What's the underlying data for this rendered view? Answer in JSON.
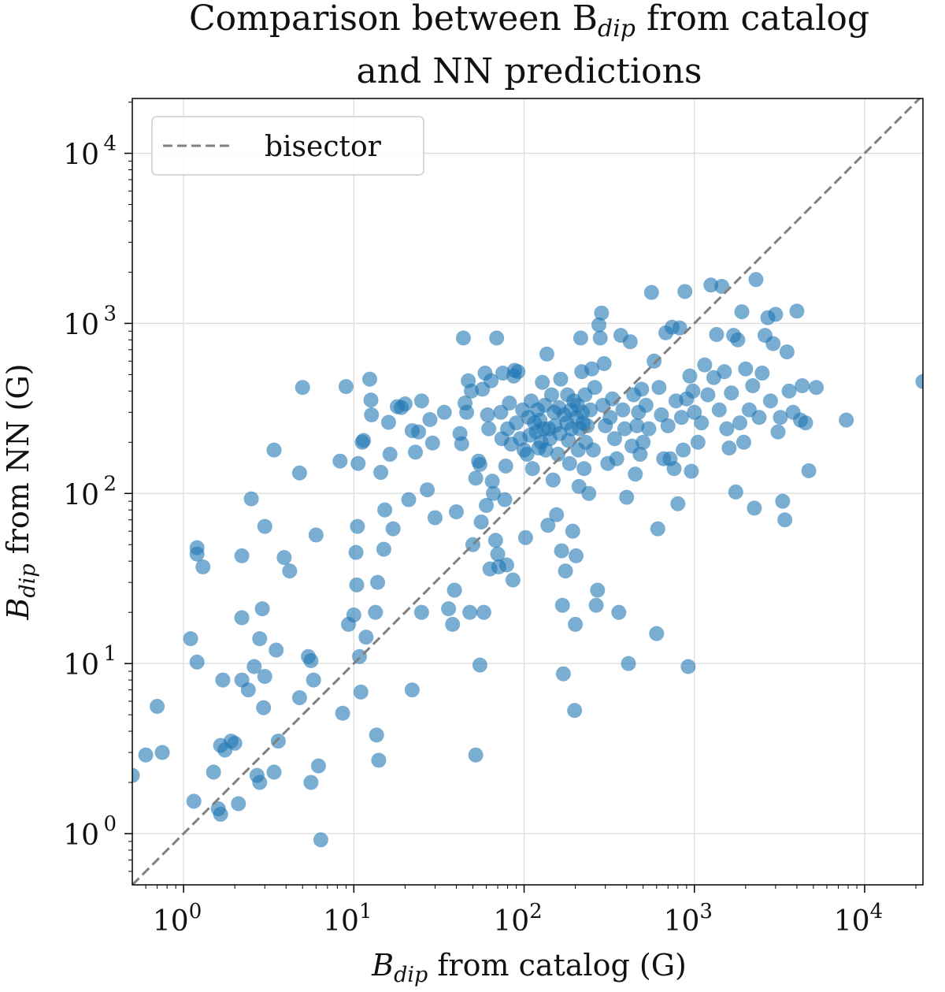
{
  "chart_data": {
    "type": "scatter",
    "title_line1": "Comparison between B",
    "title_line1_sub": "dip",
    "title_line1_tail": " from catalog",
    "title_line2": "and NN predictions",
    "xlabel_main": "B",
    "xlabel_sub": "dip",
    "xlabel_tail": " from catalog (G)",
    "ylabel_main": "B",
    "ylabel_sub": "dip",
    "ylabel_tail": " from NN (G)",
    "x_scale": "log",
    "y_scale": "log",
    "xlim": [
      0.5,
      22000
    ],
    "ylim": [
      0.5,
      21000
    ],
    "x_ticks": [
      1,
      10,
      100,
      1000,
      10000
    ],
    "y_ticks": [
      1,
      10,
      100,
      1000,
      10000
    ],
    "tick_base": "10",
    "x_tick_exponents": [
      "0",
      "1",
      "2",
      "3",
      "4"
    ],
    "y_tick_exponents": [
      "0",
      "1",
      "2",
      "3",
      "4"
    ],
    "grid": true,
    "legend_position": "top-left",
    "colors": {
      "points": "#1f77b4",
      "bisector": "#808080"
    },
    "series": [
      {
        "name": "bisector",
        "kind": "dashed-line",
        "x": [
          0.5,
          22000
        ],
        "y": [
          0.5,
          22000
        ]
      },
      {
        "kind": "scatter",
        "points": [
          [
            0.5,
            2.2
          ],
          [
            0.6,
            2.9
          ],
          [
            0.7,
            5.6
          ],
          [
            0.75,
            3.0
          ],
          [
            1.1,
            14
          ],
          [
            1.15,
            1.55
          ],
          [
            1.2,
            10.2
          ],
          [
            1.2,
            48
          ],
          [
            1.2,
            44
          ],
          [
            1.3,
            37
          ],
          [
            1.5,
            2.3
          ],
          [
            1.6,
            1.4
          ],
          [
            1.65,
            1.3
          ],
          [
            1.65,
            3.3
          ],
          [
            1.7,
            8.0
          ],
          [
            1.75,
            3.1
          ],
          [
            1.9,
            3.5
          ],
          [
            2.0,
            3.4
          ],
          [
            2.1,
            1.5
          ],
          [
            2.2,
            8.0
          ],
          [
            2.2,
            18.6
          ],
          [
            2.2,
            43
          ],
          [
            2.4,
            7.0
          ],
          [
            2.5,
            93
          ],
          [
            2.6,
            9.6
          ],
          [
            2.7,
            2.2
          ],
          [
            2.8,
            2.0
          ],
          [
            2.8,
            14
          ],
          [
            2.9,
            21
          ],
          [
            2.95,
            5.5
          ],
          [
            3.0,
            8.4
          ],
          [
            3.0,
            64
          ],
          [
            3.4,
            2.3
          ],
          [
            3.4,
            180
          ],
          [
            3.5,
            12
          ],
          [
            3.6,
            3.5
          ],
          [
            3.9,
            42
          ],
          [
            4.2,
            35
          ],
          [
            4.8,
            6.3
          ],
          [
            4.8,
            132
          ],
          [
            5.0,
            420
          ],
          [
            5.4,
            11
          ],
          [
            5.6,
            2.0
          ],
          [
            5.6,
            10.4
          ],
          [
            5.8,
            8.0
          ],
          [
            6.0,
            57
          ],
          [
            6.2,
            2.5
          ],
          [
            6.4,
            0.92
          ],
          [
            8.3,
            155
          ],
          [
            8.6,
            5.1
          ],
          [
            9.0,
            425
          ],
          [
            9.3,
            17
          ],
          [
            10.0,
            19.3
          ],
          [
            10.3,
            45
          ],
          [
            10.4,
            29
          ],
          [
            10.5,
            64
          ],
          [
            10.6,
            150
          ],
          [
            10.8,
            11
          ],
          [
            11.0,
            6.8
          ],
          [
            11.2,
            200
          ],
          [
            11.4,
            205
          ],
          [
            11.8,
            14.3
          ],
          [
            12.4,
            470
          ],
          [
            12.6,
            354
          ],
          [
            12.7,
            290
          ],
          [
            13.4,
            20
          ],
          [
            13.6,
            3.8
          ],
          [
            13.8,
            30
          ],
          [
            14.0,
            2.7
          ],
          [
            14.4,
            133
          ],
          [
            15.0,
            47
          ],
          [
            15.2,
            80
          ],
          [
            16.0,
            262
          ],
          [
            16.3,
            170
          ],
          [
            17.0,
            62
          ],
          [
            18.0,
            324
          ],
          [
            19.0,
            320
          ],
          [
            20.0,
            336
          ],
          [
            21.0,
            92
          ],
          [
            22.0,
            7.0
          ],
          [
            22.0,
            234
          ],
          [
            23.0,
            175
          ],
          [
            24.0,
            230
          ],
          [
            25.0,
            350
          ],
          [
            25.0,
            20
          ],
          [
            27.0,
            105
          ],
          [
            28.0,
            272
          ],
          [
            29.0,
            198
          ],
          [
            30.0,
            72
          ],
          [
            34.0,
            300
          ],
          [
            36.0,
            21
          ],
          [
            38.0,
            17
          ],
          [
            39.0,
            27
          ],
          [
            40.0,
            78
          ],
          [
            42.0,
            225
          ],
          [
            43.0,
            196
          ],
          [
            44.0,
            820
          ],
          [
            45.0,
            340
          ],
          [
            46.0,
            300
          ],
          [
            47.0,
            460
          ],
          [
            48.0,
            20
          ],
          [
            49.0,
            400
          ],
          [
            50.0,
            50
          ],
          [
            52.0,
            2.9
          ],
          [
            52.0,
            123
          ],
          [
            54.0,
            155
          ],
          [
            55.0,
            148
          ],
          [
            55.0,
            9.8
          ],
          [
            56.0,
            68
          ],
          [
            57.0,
            410
          ],
          [
            58.0,
            20
          ],
          [
            59.0,
            510
          ],
          [
            60.0,
            85
          ],
          [
            61.0,
            290
          ],
          [
            62.0,
            240
          ],
          [
            63.0,
            36
          ],
          [
            64.0,
            460
          ],
          [
            65.0,
            118
          ],
          [
            66.0,
            100
          ],
          [
            68.0,
            53
          ],
          [
            69.0,
            820
          ],
          [
            70.0,
            44
          ],
          [
            71.0,
            37
          ],
          [
            73.0,
            300
          ],
          [
            74.0,
            210
          ],
          [
            75.0,
            510
          ],
          [
            77.0,
            92
          ],
          [
            78.0,
            145
          ],
          [
            79.0,
            38
          ],
          [
            80.0,
            240
          ],
          [
            82.0,
            340
          ],
          [
            84.0,
            195
          ],
          [
            86.0,
            31
          ],
          [
            87.0,
            490
          ],
          [
            88.0,
            530
          ],
          [
            90.0,
            260
          ],
          [
            92.0,
            520
          ],
          [
            95.0,
            210
          ],
          [
            98.0,
            310
          ],
          [
            100.0,
            180
          ],
          [
            102.0,
            55
          ],
          [
            104.0,
            170
          ],
          [
            106.0,
            280
          ],
          [
            108.0,
            220
          ],
          [
            110.0,
            350
          ],
          [
            112.0,
            140
          ],
          [
            115.0,
            260
          ],
          [
            118.0,
            230
          ],
          [
            120.0,
            310
          ],
          [
            122.0,
            185
          ],
          [
            124.0,
            270
          ],
          [
            126.0,
            200
          ],
          [
            128.0,
            450
          ],
          [
            130.0,
            240
          ],
          [
            132.0,
            330
          ],
          [
            134.0,
            180
          ],
          [
            136.0,
            660
          ],
          [
            138.0,
            65
          ],
          [
            140.0,
            240
          ],
          [
            142.0,
            210
          ],
          [
            145.0,
            380
          ],
          [
            148.0,
            120
          ],
          [
            150.0,
            300
          ],
          [
            152.0,
            250
          ],
          [
            155.0,
            75
          ],
          [
            158.0,
            170
          ],
          [
            160.0,
            320
          ],
          [
            162.0,
            225
          ],
          [
            164.0,
            470
          ],
          [
            166.0,
            46
          ],
          [
            168.0,
            22
          ],
          [
            170.0,
            8.7
          ],
          [
            172.0,
            290
          ],
          [
            175.0,
            35
          ],
          [
            178.0,
            260
          ],
          [
            180.0,
            380
          ],
          [
            182.0,
            205
          ],
          [
            185.0,
            150
          ],
          [
            188.0,
            310
          ],
          [
            190.0,
            240
          ],
          [
            193.0,
            60
          ],
          [
            196.0,
            350
          ],
          [
            198.0,
            5.3
          ],
          [
            200.0,
            17
          ],
          [
            202.0,
            43
          ],
          [
            204.0,
            280
          ],
          [
            206.0,
            330
          ],
          [
            208.0,
            180
          ],
          [
            210.0,
            110
          ],
          [
            212.0,
            240
          ],
          [
            215.0,
            820
          ],
          [
            218.0,
            520
          ],
          [
            220.0,
            300
          ],
          [
            222.0,
            260
          ],
          [
            225.0,
            140
          ],
          [
            228.0,
            380
          ],
          [
            230.0,
            200
          ],
          [
            235.0,
            250
          ],
          [
            240.0,
            100
          ],
          [
            245.0,
            310
          ],
          [
            250.0,
            540
          ],
          [
            255.0,
            180
          ],
          [
            260.0,
            420
          ],
          [
            265.0,
            22
          ],
          [
            270.0,
            27
          ],
          [
            275.0,
            980
          ],
          [
            280.0,
            820
          ],
          [
            285.0,
            1150
          ],
          [
            290.0,
            330
          ],
          [
            295.0,
            580
          ],
          [
            300.0,
            250
          ],
          [
            310.0,
            150
          ],
          [
            320.0,
            280
          ],
          [
            330.0,
            360
          ],
          [
            340.0,
            210
          ],
          [
            350.0,
            160
          ],
          [
            360.0,
            20
          ],
          [
            370.0,
            850
          ],
          [
            380.0,
            310
          ],
          [
            390.0,
            240
          ],
          [
            400.0,
            95
          ],
          [
            410.0,
            10
          ],
          [
            420.0,
            780
          ],
          [
            430.0,
            190
          ],
          [
            440.0,
            380
          ],
          [
            450.0,
            130
          ],
          [
            460.0,
            250
          ],
          [
            470.0,
            300
          ],
          [
            480.0,
            170
          ],
          [
            490.0,
            410
          ],
          [
            500.0,
            200
          ],
          [
            520.0,
            330
          ],
          [
            540.0,
            240
          ],
          [
            560.0,
            1520
          ],
          [
            580.0,
            600
          ],
          [
            600.0,
            15
          ],
          [
            610.0,
            62
          ],
          [
            620.0,
            420
          ],
          [
            640.0,
            290
          ],
          [
            660.0,
            160
          ],
          [
            680.0,
            880
          ],
          [
            700.0,
            250
          ],
          [
            720.0,
            160
          ],
          [
            740.0,
            950
          ],
          [
            760.0,
            140
          ],
          [
            780.0,
            350
          ],
          [
            800.0,
            87
          ],
          [
            820.0,
            940
          ],
          [
            840.0,
            280
          ],
          [
            860.0,
            180
          ],
          [
            880.0,
            1540
          ],
          [
            900.0,
            360
          ],
          [
            920.0,
            9.6
          ],
          [
            940.0,
            490
          ],
          [
            960.0,
            135
          ],
          [
            980.0,
            400
          ],
          [
            1000.0,
            300
          ],
          [
            1050.0,
            200
          ],
          [
            1100.0,
            260
          ],
          [
            1150.0,
            570
          ],
          [
            1200.0,
            380
          ],
          [
            1250.0,
            1680
          ],
          [
            1300.0,
            480
          ],
          [
            1350.0,
            860
          ],
          [
            1400.0,
            310
          ],
          [
            1450.0,
            1650
          ],
          [
            1500.0,
            520
          ],
          [
            1550.0,
            240
          ],
          [
            1600.0,
            185
          ],
          [
            1650.0,
            390
          ],
          [
            1700.0,
            850
          ],
          [
            1750.0,
            102
          ],
          [
            1800.0,
            800
          ],
          [
            1850.0,
            260
          ],
          [
            1900.0,
            1170
          ],
          [
            1950.0,
            200
          ],
          [
            2000.0,
            540
          ],
          [
            2100.0,
            310
          ],
          [
            2200.0,
            430
          ],
          [
            2250.0,
            82
          ],
          [
            2300.0,
            1810
          ],
          [
            2400.0,
            280
          ],
          [
            2500.0,
            510
          ],
          [
            2600.0,
            850
          ],
          [
            2700.0,
            1080
          ],
          [
            2800.0,
            350
          ],
          [
            2900.0,
            760
          ],
          [
            3000.0,
            1130
          ],
          [
            3100.0,
            230
          ],
          [
            3200.0,
            280
          ],
          [
            3300.0,
            90
          ],
          [
            3400.0,
            70
          ],
          [
            3500.0,
            680
          ],
          [
            3600.0,
            400
          ],
          [
            3800.0,
            300
          ],
          [
            4000.0,
            1180
          ],
          [
            4200.0,
            270
          ],
          [
            4300.0,
            430
          ],
          [
            4500.0,
            260
          ],
          [
            4700.0,
            136
          ],
          [
            5200.0,
            420
          ],
          [
            7800.0,
            270
          ],
          [
            22000.0,
            455
          ]
        ]
      }
    ]
  }
}
